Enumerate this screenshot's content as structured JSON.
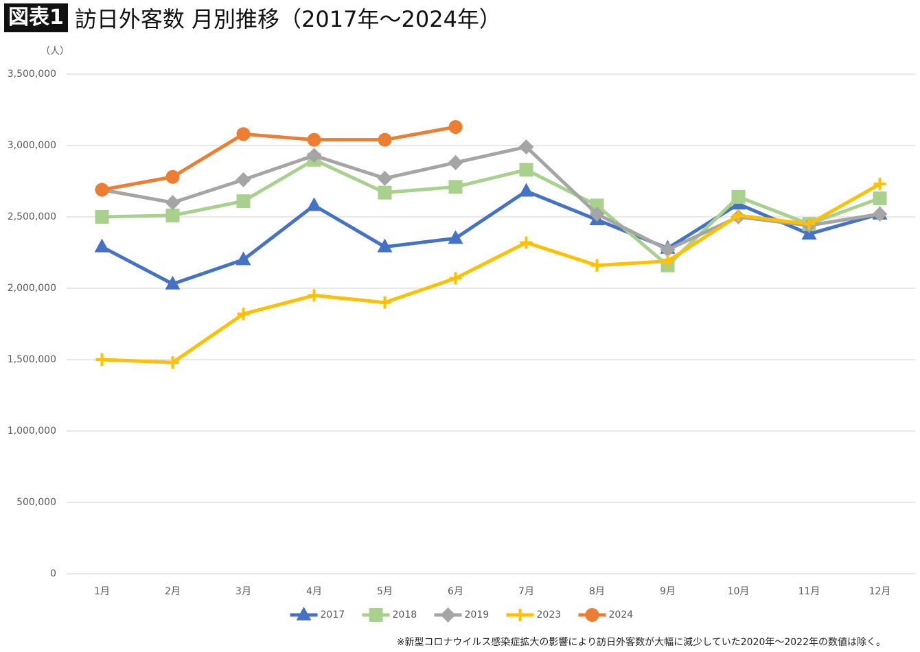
{
  "chart_data": {
    "type": "line",
    "figure_label": "図表1",
    "title": "訪日外客数 月別推移（2017年〜2024年）",
    "y_unit": "（人）",
    "footnote": "※新型コロナウイルス感染症拡大の影響により訪日外客数が大幅に減少していた2020年〜2022年の数値は除く。",
    "categories": [
      "1月",
      "2月",
      "3月",
      "4月",
      "5月",
      "6月",
      "7月",
      "8月",
      "9月",
      "10月",
      "11月",
      "12月"
    ],
    "series": [
      {
        "name": "2017",
        "color": "#4472c4",
        "marker": "triangle",
        "values": [
          2290000,
          2030000,
          2200000,
          2580000,
          2290000,
          2350000,
          2680000,
          2480000,
          2280000,
          2590000,
          2380000,
          2520000
        ]
      },
      {
        "name": "2018",
        "color": "#a9d18e",
        "marker": "square",
        "values": [
          2500000,
          2510000,
          2610000,
          2900000,
          2670000,
          2710000,
          2830000,
          2580000,
          2160000,
          2640000,
          2450000,
          2630000
        ]
      },
      {
        "name": "2019",
        "color": "#a5a5a5",
        "marker": "diamond",
        "values": [
          2690000,
          2600000,
          2760000,
          2930000,
          2770000,
          2880000,
          2990000,
          2520000,
          2270000,
          2500000,
          2440000,
          2520000
        ]
      },
      {
        "name": "2023",
        "color": "#ffc000",
        "marker": "plus",
        "values": [
          1500000,
          1480000,
          1820000,
          1950000,
          1900000,
          2070000,
          2320000,
          2160000,
          2190000,
          2510000,
          2450000,
          2730000
        ]
      },
      {
        "name": "2024",
        "color": "#ed7d31",
        "marker": "circle",
        "values": [
          2690000,
          2780000,
          3080000,
          3040000,
          3040000,
          3130000,
          null,
          null,
          null,
          null,
          null,
          null
        ]
      }
    ],
    "ylim": [
      0,
      3500000
    ],
    "yticks": [
      0,
      {
        "value": 500000,
        "label": "500,000"
      },
      {
        "value": 1000000,
        "label": "1,000,000"
      },
      {
        "value": 1500000,
        "label": "1,500,000"
      },
      {
        "value": 2000000,
        "label": "2,000,000"
      },
      {
        "value": 2500000,
        "label": "2,500,000"
      },
      {
        "value": 3000000,
        "label": "3,000,000"
      },
      {
        "value": 3500000,
        "label": "3,500,000"
      }
    ],
    "grid": true,
    "legend": "bottom"
  }
}
